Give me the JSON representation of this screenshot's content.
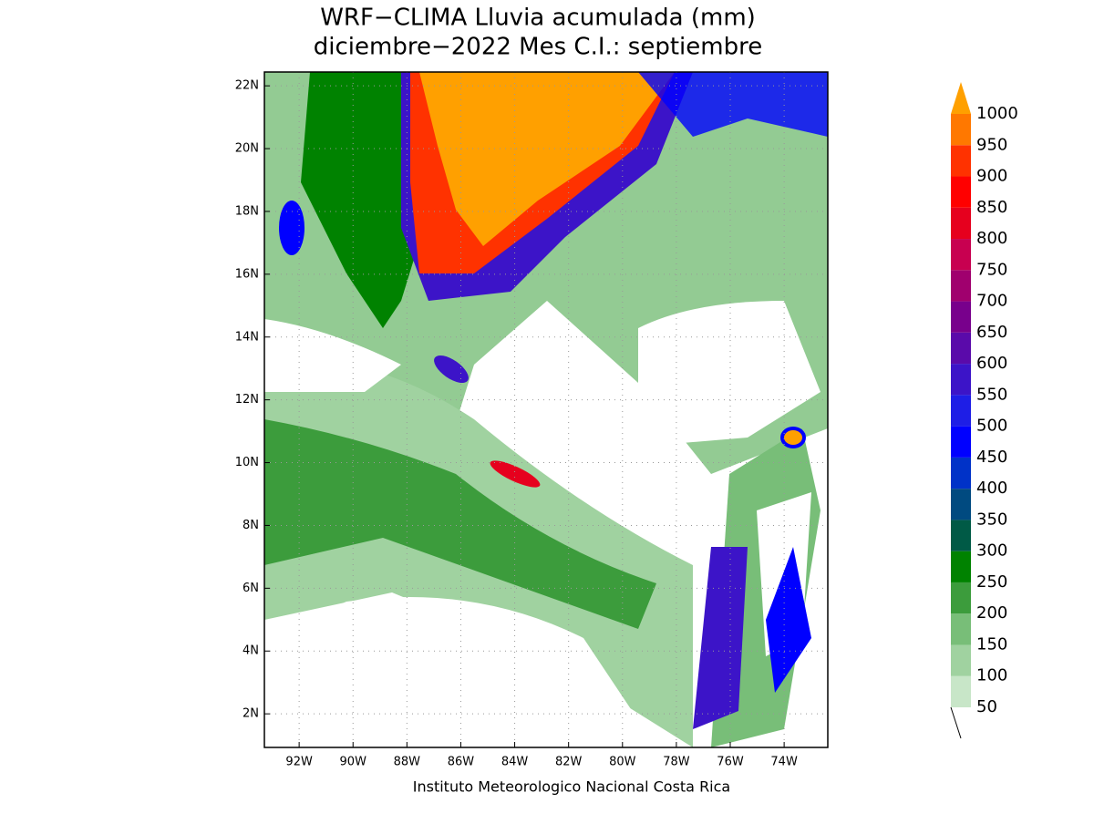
{
  "map": {
    "title": [
      "WRF−CLIMA Lluvia acumulada (mm)",
      "diciembre−2022 Mes C.I.: septiembre"
    ],
    "lon_range": [
      -93.29,
      -72.38
    ],
    "lat_range": [
      0.93,
      22.44
    ],
    "lon_ticks": [
      {
        "value": -92,
        "label": "92W"
      },
      {
        "value": -90,
        "label": "90W"
      },
      {
        "value": -88,
        "label": "88W"
      },
      {
        "value": -86,
        "label": "86W"
      },
      {
        "value": -84,
        "label": "84W"
      },
      {
        "value": -82,
        "label": "82W"
      },
      {
        "value": -80,
        "label": "80W"
      },
      {
        "value": -78,
        "label": "78W"
      },
      {
        "value": -76,
        "label": "76W"
      },
      {
        "value": -74,
        "label": "74W"
      }
    ],
    "lat_ticks": [
      {
        "value": 2,
        "label": "2N"
      },
      {
        "value": 4,
        "label": "4N"
      },
      {
        "value": 6,
        "label": "6N"
      },
      {
        "value": 8,
        "label": "8N"
      },
      {
        "value": 10,
        "label": "10N"
      },
      {
        "value": 12,
        "label": "12N"
      },
      {
        "value": 14,
        "label": "14N"
      },
      {
        "value": 16,
        "label": "16N"
      },
      {
        "value": 18,
        "label": "18N"
      },
      {
        "value": 20,
        "label": "20N"
      },
      {
        "value": 22,
        "label": "22N"
      }
    ],
    "grid": true,
    "footer": "Instituto Meteorologico Nacional Costa Rica"
  },
  "colorbar": {
    "levels": [
      50,
      100,
      150,
      200,
      250,
      300,
      350,
      400,
      450,
      500,
      550,
      600,
      650,
      700,
      750,
      800,
      850,
      900,
      950,
      1000
    ],
    "colors": [
      "#c8e6c8",
      "#a0d2a0",
      "#78be78",
      "#3c9c3c",
      "#008200",
      "#005a46",
      "#004a80",
      "#0032c8",
      "#0000ff",
      "#1e1ee6",
      "#3c14c8",
      "#5a0aaa",
      "#78008c",
      "#a0006e",
      "#c80050",
      "#e6001e",
      "#ff0000",
      "#ff3200",
      "#ff7800",
      "#ffa000"
    ]
  }
}
